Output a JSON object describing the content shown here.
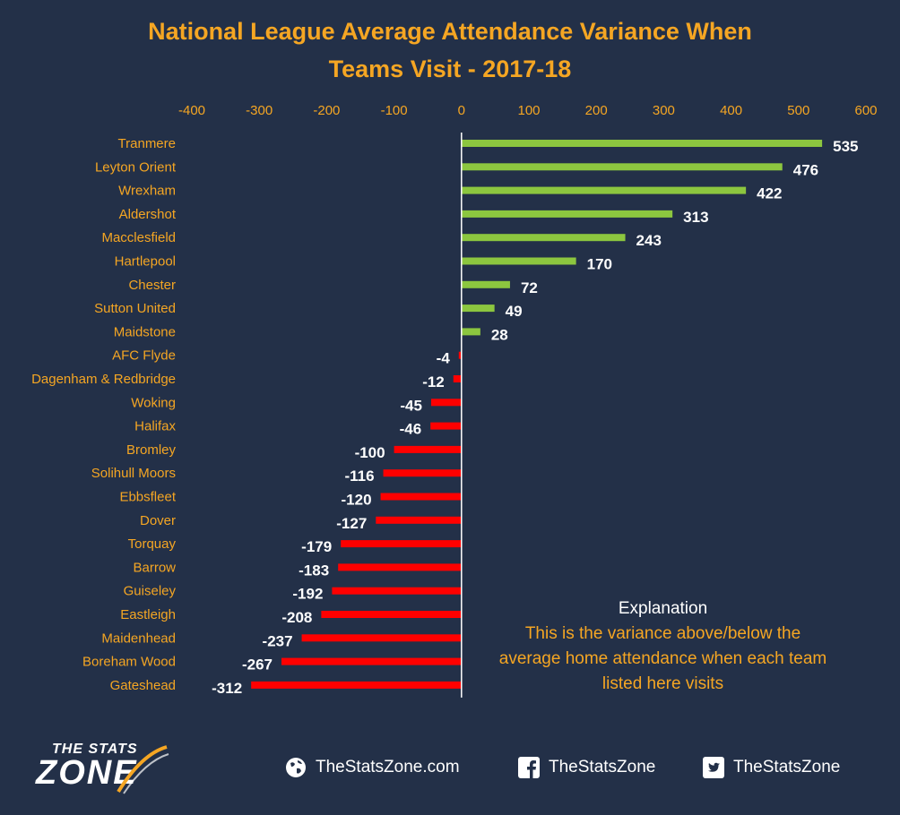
{
  "chart_data": {
    "type": "bar",
    "orientation": "horizontal",
    "title": "National League Average Attendance Variance When Teams Visit - 2017-18",
    "title_lines": [
      "National League Average Attendance Variance When",
      "Teams Visit - 2017-18"
    ],
    "xlim": [
      -400,
      600
    ],
    "xticks": [
      -400,
      -300,
      -200,
      -100,
      0,
      100,
      200,
      300,
      400,
      500,
      600
    ],
    "xaxis_position": "top",
    "grid": false,
    "categories": [
      "Tranmere",
      "Leyton Orient",
      "Wrexham",
      "Aldershot",
      "Macclesfield",
      "Hartlepool",
      "Chester",
      "Sutton United",
      "Maidstone",
      "AFC Flyde",
      "Dagenham & Redbridge",
      "Woking",
      "Halifax",
      "Bromley",
      "Solihull Moors",
      "Ebbsfleet",
      "Dover",
      "Torquay",
      "Barrow",
      "Guiseley",
      "Eastleigh",
      "Maidenhead",
      "Boreham Wood",
      "Gateshead"
    ],
    "values": [
      535,
      476,
      422,
      313,
      243,
      170,
      72,
      49,
      28,
      -4,
      -12,
      -45,
      -46,
      -100,
      -116,
      -120,
      -127,
      -179,
      -183,
      -192,
      -208,
      -237,
      -267,
      -312
    ],
    "colors": {
      "positive": "#8CC63F",
      "negative": "#FF0000",
      "text": "#F5A623",
      "label": "#FFFFFF",
      "background": "#233048"
    }
  },
  "explanation": {
    "title": "Explanation",
    "body": "This is the variance above/below the average home attendance when each team listed here visits"
  },
  "footer": {
    "logo_top": "THE STATS",
    "logo_main": "ZONE",
    "website": "TheStatsZone.com",
    "facebook": "TheStatsZone",
    "twitter": "TheStatsZone",
    "icons": [
      "globe-icon",
      "facebook-icon",
      "twitter-icon"
    ]
  }
}
